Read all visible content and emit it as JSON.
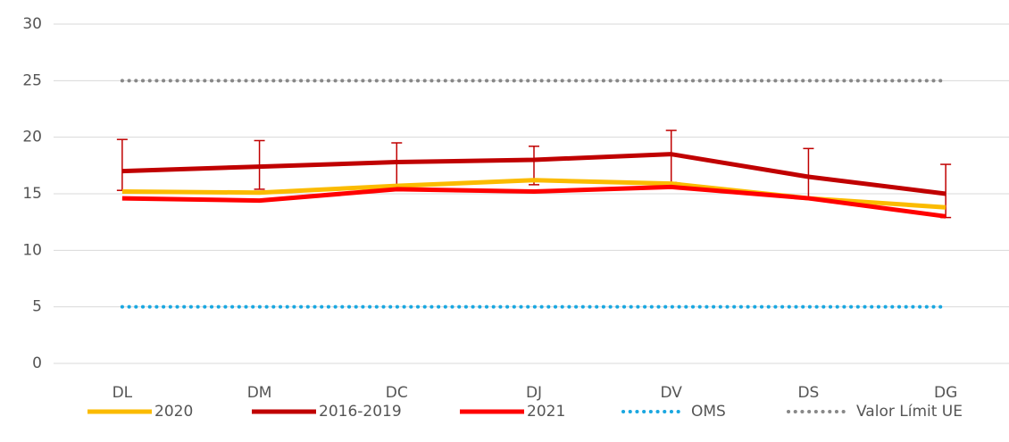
{
  "chart_data": {
    "type": "line",
    "categories": [
      "DL",
      "DM",
      "DC",
      "DJ",
      "DV",
      "DS",
      "DG"
    ],
    "series": [
      {
        "name": "2020",
        "color": "#fbbb00",
        "style": "solid",
        "values": [
          15.2,
          15.1,
          15.7,
          16.2,
          15.9,
          14.6,
          13.8
        ]
      },
      {
        "name": "2016-2019",
        "color": "#c00000",
        "style": "solid",
        "values": [
          17.0,
          17.4,
          17.8,
          18.0,
          18.5,
          16.5,
          15.0
        ],
        "error_plus": [
          2.8,
          2.3,
          1.7,
          1.2,
          2.1,
          2.5,
          2.6
        ],
        "error_minus": [
          1.7,
          2.0,
          2.2,
          2.2,
          2.5,
          1.9,
          2.1
        ]
      },
      {
        "name": "2021",
        "color": "#ff0000",
        "style": "solid",
        "values": [
          14.6,
          14.4,
          15.4,
          15.2,
          15.6,
          14.6,
          13.0
        ]
      },
      {
        "name": "OMS",
        "color": "#1aa7e0",
        "style": "dotted",
        "values": [
          5,
          5,
          5,
          5,
          5,
          5,
          5
        ]
      },
      {
        "name": "Valor Límit UE",
        "color": "#888888",
        "style": "dotted",
        "values": [
          25,
          25,
          25,
          25,
          25,
          25,
          25
        ]
      }
    ],
    "ylim": [
      0,
      30
    ],
    "yticks": [
      0,
      5,
      10,
      15,
      20,
      25,
      30
    ],
    "grid": true,
    "legend": "bottom"
  }
}
